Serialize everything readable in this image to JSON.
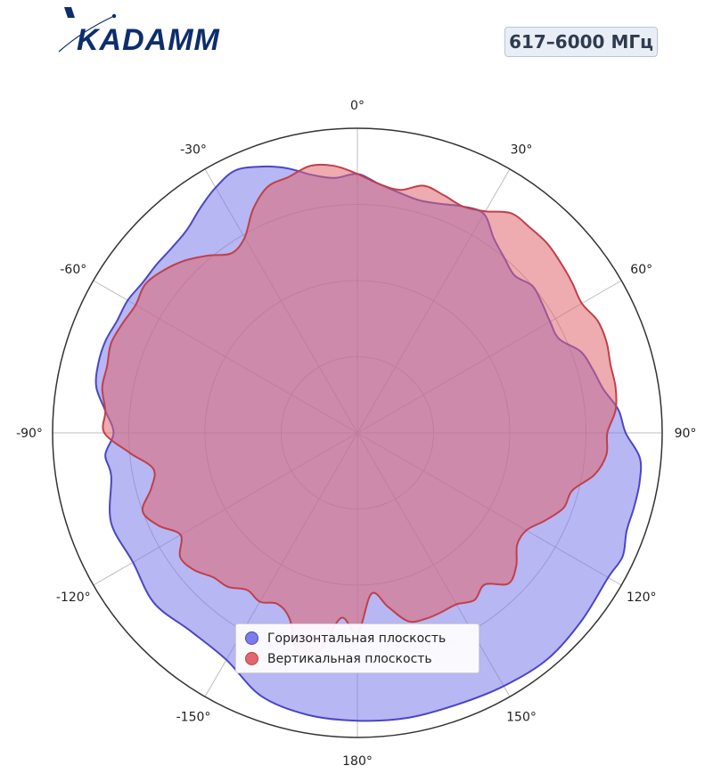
{
  "brand": {
    "logo_text": "KADAMM",
    "logo_color": "#0d2d6e"
  },
  "header": {
    "frequency_badge": "617–6000 МГц"
  },
  "chart_data": {
    "type": "polar-area",
    "angle_labels": [
      "0°",
      "30°",
      "60°",
      "90°",
      "120°",
      "150°",
      "180°",
      "-150°",
      "-120°",
      "-90°",
      "-60°",
      "-30°"
    ],
    "angle_ticks_deg": [
      0,
      30,
      60,
      90,
      120,
      150,
      180,
      -150,
      -120,
      -90,
      -60,
      -30
    ],
    "radial_rings": [
      0.25,
      0.5,
      0.75,
      1.0
    ],
    "rmax": 1.0,
    "grid": true,
    "legend_placement": "bottom-center",
    "series": [
      {
        "name": "Горизонтальная плоскость",
        "color": "#4a46c6",
        "fill": "#7b7bea",
        "angles_deg": [
          -180,
          -170,
          -160,
          -150,
          -140,
          -130,
          -120,
          -110,
          -100,
          -95,
          -90,
          -85,
          -80,
          -75,
          -70,
          -65,
          -60,
          -55,
          -50,
          -45,
          -40,
          -35,
          -30,
          -25,
          -20,
          -15,
          -10,
          -5,
          0,
          5,
          10,
          15,
          20,
          25,
          30,
          35,
          40,
          45,
          50,
          55,
          60,
          65,
          70,
          75,
          80,
          85,
          90,
          95,
          100,
          105,
          110,
          115,
          120,
          130,
          140,
          150,
          160,
          170,
          180
        ],
        "values": [
          0.945,
          0.94,
          0.92,
          0.86,
          0.85,
          0.87,
          0.85,
          0.86,
          0.82,
          0.83,
          0.8,
          0.83,
          0.87,
          0.88,
          0.88,
          0.87,
          0.87,
          0.86,
          0.86,
          0.86,
          0.87,
          0.9,
          0.93,
          0.95,
          0.93,
          0.9,
          0.86,
          0.84,
          0.85,
          0.82,
          0.8,
          0.79,
          0.8,
          0.82,
          0.83,
          0.78,
          0.75,
          0.73,
          0.75,
          0.74,
          0.73,
          0.73,
          0.78,
          0.8,
          0.82,
          0.86,
          0.88,
          0.93,
          0.94,
          0.94,
          0.94,
          0.96,
          0.95,
          0.96,
          0.97,
          0.96,
          0.95,
          0.95,
          0.945
        ]
      },
      {
        "name": "Вертикальная плоскость",
        "color": "#c0404a",
        "fill": "#e0666f",
        "angles_deg": [
          -180,
          -175,
          -170,
          -165,
          -160,
          -155,
          -150,
          -145,
          -140,
          -135,
          -130,
          -125,
          -120,
          -115,
          -110,
          -105,
          -100,
          -95,
          -90,
          -85,
          -80,
          -75,
          -70,
          -65,
          -60,
          -55,
          -50,
          -45,
          -40,
          -35,
          -30,
          -25,
          -20,
          -15,
          -10,
          -5,
          0,
          5,
          10,
          15,
          20,
          25,
          30,
          35,
          40,
          45,
          50,
          55,
          60,
          65,
          70,
          75,
          80,
          85,
          90,
          95,
          100,
          105,
          110,
          115,
          120,
          125,
          130,
          135,
          140,
          145,
          150,
          155,
          160,
          165,
          170,
          175,
          180
        ],
        "values": [
          0.66,
          0.61,
          0.73,
          0.75,
          0.65,
          0.62,
          0.64,
          0.63,
          0.66,
          0.67,
          0.7,
          0.71,
          0.67,
          0.72,
          0.75,
          0.7,
          0.68,
          0.75,
          0.83,
          0.83,
          0.85,
          0.85,
          0.86,
          0.85,
          0.84,
          0.85,
          0.83,
          0.8,
          0.76,
          0.72,
          0.74,
          0.81,
          0.86,
          0.87,
          0.89,
          0.88,
          0.85,
          0.82,
          0.81,
          0.84,
          0.83,
          0.82,
          0.84,
          0.88,
          0.88,
          0.88,
          0.87,
          0.86,
          0.85,
          0.87,
          0.87,
          0.86,
          0.86,
          0.85,
          0.82,
          0.82,
          0.79,
          0.73,
          0.72,
          0.68,
          0.64,
          0.64,
          0.68,
          0.7,
          0.65,
          0.67,
          0.65,
          0.65,
          0.65,
          0.64,
          0.58,
          0.53,
          0.66
        ]
      }
    ]
  }
}
